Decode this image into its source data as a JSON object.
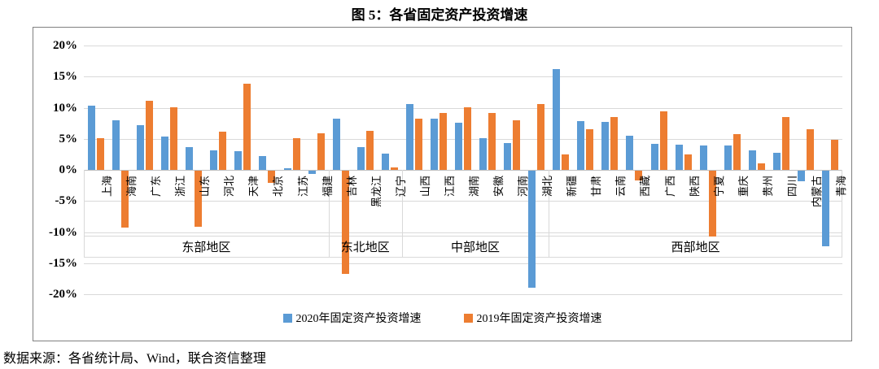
{
  "title": "图 5：各省固定资产投资增速",
  "source_note": "数据来源：各省统计局、Wind，联合资信整理",
  "colors": {
    "series_2020": "#5B9BD5",
    "series_2019": "#ED7D31",
    "grid": "#D9D9D9",
    "zero_axis": "#BFBFBF",
    "frame_border": "#808080"
  },
  "chart_data": {
    "type": "bar",
    "title": "图 5：各省固定资产投资增速",
    "xlabel": "",
    "ylabel": "",
    "ylim": [
      -20,
      20
    ],
    "ytick_step": 5,
    "ytick_suffix": "%",
    "grid": true,
    "legend_position": "bottom-center",
    "groups": [
      {
        "label": "东部地区",
        "count": 10
      },
      {
        "label": "东北地区",
        "count": 3
      },
      {
        "label": "中部地区",
        "count": 6
      },
      {
        "label": "西部地区",
        "count": 12
      }
    ],
    "categories": [
      "上海",
      "海南",
      "广东",
      "浙江",
      "山东",
      "河北",
      "天津",
      "北京",
      "江苏",
      "福建",
      "吉林",
      "黑龙江",
      "辽宁",
      "山西",
      "江西",
      "湖南",
      "安徽",
      "河南",
      "湖北",
      "新疆",
      "甘肃",
      "云南",
      "西藏",
      "广西",
      "陕西",
      "宁夏",
      "重庆",
      "贵州",
      "四川",
      "内蒙古",
      "青海"
    ],
    "series": [
      {
        "name": "2020年固定资产投资增速",
        "color": "#5B9BD5",
        "values": [
          10.3,
          8.0,
          7.2,
          5.4,
          3.6,
          3.2,
          3.0,
          2.2,
          0.3,
          -0.5,
          8.3,
          3.6,
          2.6,
          10.6,
          8.2,
          7.6,
          5.1,
          4.3,
          -18.8,
          16.2,
          7.8,
          7.7,
          5.5,
          4.2,
          4.1,
          3.9,
          3.9,
          3.2,
          2.8,
          -1.7,
          -12.2
        ]
      },
      {
        "name": "2019年固定资产投资增速",
        "color": "#ED7D31",
        "values": [
          5.1,
          -9.2,
          11.1,
          10.1,
          -9.0,
          6.1,
          13.9,
          -2.0,
          5.1,
          5.9,
          -16.6,
          6.3,
          0.4,
          8.3,
          9.2,
          10.1,
          9.2,
          8.0,
          10.6,
          2.5,
          6.5,
          8.5,
          -1.6,
          9.4,
          2.5,
          -10.6,
          5.7,
          1.0,
          8.5,
          6.6,
          4.8
        ]
      }
    ]
  }
}
